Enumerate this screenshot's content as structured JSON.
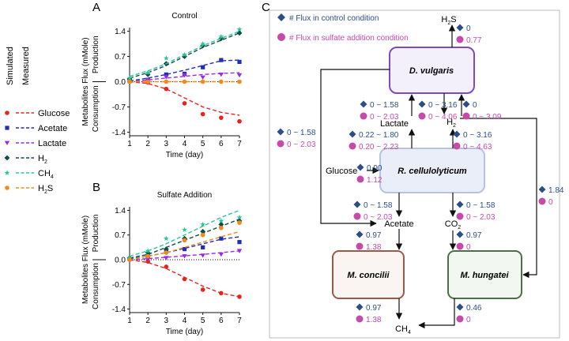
{
  "figure": {
    "panel_labels": {
      "a": "A",
      "b": "B",
      "c": "C"
    },
    "legend": {
      "simulated_label": "Simulated",
      "measured_label": "Measured",
      "entries": [
        {
          "name": "Glucose",
          "color": "#e8231d",
          "marker": "circle"
        },
        {
          "name": "Acetate",
          "color": "#1f2fb5",
          "marker": "square"
        },
        {
          "name": "Lactate",
          "color": "#9a2be2",
          "marker": "triangle-down"
        },
        {
          "name": "H",
          "sub": "2",
          "color": "#114c45",
          "marker": "diamond"
        },
        {
          "name": "CH",
          "sub": "4",
          "color": "#25c79b",
          "marker": "star"
        },
        {
          "name": "H",
          "sub": "2",
          "after": "S",
          "color": "#f08a1c",
          "marker": "circle"
        }
      ]
    }
  },
  "chart_data": [
    {
      "type": "line",
      "title": "Control",
      "xlabel": "Time (day)",
      "ylabel": "Metabolites Flux (mMole)",
      "region_labels": [
        "Production",
        "Consumption"
      ],
      "xlim": [
        1,
        7
      ],
      "ylim": [
        -1.5,
        1.5
      ],
      "xticks": [
        1,
        2,
        3,
        4,
        5,
        6,
        7
      ],
      "yticks": [
        -1.4,
        -0.7,
        0.0,
        0.7,
        1.4
      ],
      "ytick_labels": [
        "-1.4",
        "-0.7",
        "0.0",
        "0.7",
        "1.4"
      ],
      "series": [
        {
          "name": "Glucose",
          "color": "#e8231d",
          "marker": "circle",
          "simulated": [
            0,
            -0.05,
            -0.2,
            -0.45,
            -0.7,
            -0.85,
            -0.93
          ],
          "measured": [
            0,
            -0.02,
            -0.2,
            -0.6,
            -0.9,
            -1.0,
            -1.1
          ]
        },
        {
          "name": "Acetate",
          "color": "#1f2fb5",
          "marker": "square",
          "simulated": [
            0.02,
            0.1,
            0.2,
            0.32,
            0.45,
            0.58,
            0.6
          ],
          "measured": [
            0.02,
            0.05,
            0.2,
            0.22,
            0.4,
            0.6,
            0.55
          ]
        },
        {
          "name": "Lactate",
          "color": "#9a2be2",
          "marker": "triangle-down",
          "simulated": [
            0.0,
            0.05,
            0.1,
            0.15,
            0.2,
            0.23,
            0.25
          ],
          "measured": [
            0.01,
            0.05,
            0.13,
            0.18,
            0.12,
            0.2,
            0.18
          ]
        },
        {
          "name": "H2",
          "color": "#114c45",
          "marker": "diamond",
          "simulated": [
            0.1,
            0.25,
            0.45,
            0.7,
            0.95,
            1.15,
            1.35
          ],
          "measured": [
            0.08,
            0.2,
            0.5,
            0.7,
            1.0,
            1.2,
            1.35
          ]
        },
        {
          "name": "CH4",
          "color": "#25c79b",
          "marker": "star",
          "simulated": [
            0.15,
            0.3,
            0.5,
            0.75,
            1.0,
            1.2,
            1.4
          ],
          "measured": [
            0.1,
            0.25,
            0.65,
            0.75,
            1.05,
            1.25,
            1.45
          ]
        },
        {
          "name": "H2S",
          "color": "#f08a1c",
          "marker": "circle",
          "simulated": [
            0,
            0,
            0,
            0,
            0,
            0,
            0
          ],
          "measured": [
            0,
            0,
            0,
            0,
            0,
            0,
            0
          ]
        }
      ]
    },
    {
      "type": "line",
      "title": "Sulfate Addition",
      "xlabel": "Time (day)",
      "ylabel": "Metabolites Flux (mMole)",
      "region_labels": [
        "Production",
        "Consumption"
      ],
      "xlim": [
        1,
        7
      ],
      "ylim": [
        -1.5,
        1.5
      ],
      "xticks": [
        1,
        2,
        3,
        4,
        5,
        6,
        7
      ],
      "yticks": [
        -1.4,
        -0.7,
        0.0,
        0.7,
        1.4
      ],
      "ytick_labels": [
        "-1.4",
        "-0.7",
        "0.0",
        "0.7",
        "1.4"
      ],
      "series": [
        {
          "name": "Glucose",
          "color": "#e8231d",
          "marker": "circle",
          "simulated": [
            0,
            -0.08,
            -0.25,
            -0.5,
            -0.75,
            -0.95,
            -1.05
          ],
          "measured": [
            0,
            -0.05,
            -0.2,
            -0.55,
            -0.85,
            -0.95,
            -1.05
          ]
        },
        {
          "name": "Acetate",
          "color": "#1f2fb5",
          "marker": "square",
          "simulated": [
            0.02,
            0.1,
            0.2,
            0.32,
            0.45,
            0.58,
            0.65
          ],
          "measured": [
            0.02,
            0.1,
            0.25,
            0.3,
            0.35,
            0.6,
            0.5
          ]
        },
        {
          "name": "Lactate",
          "color": "#9a2be2",
          "marker": "triangle-down",
          "simulated": [
            0.0,
            0.03,
            0.07,
            0.11,
            0.15,
            0.2,
            0.25
          ],
          "measured": [
            0.0,
            0.02,
            0.05,
            0.1,
            0.12,
            0.15,
            0.25
          ]
        },
        {
          "name": "H2",
          "color": "#114c45",
          "marker": "diamond",
          "simulated": [
            0.05,
            0.15,
            0.35,
            0.55,
            0.75,
            0.95,
            1.15
          ],
          "measured": [
            0.05,
            0.2,
            0.3,
            0.6,
            0.8,
            1.0,
            1.1
          ]
        },
        {
          "name": "CH4",
          "color": "#25c79b",
          "marker": "star",
          "simulated": [
            0.1,
            0.25,
            0.45,
            0.7,
            0.95,
            1.2,
            1.4
          ],
          "measured": [
            0.05,
            0.25,
            0.6,
            0.85,
            1.0,
            1.1,
            1.2
          ]
        },
        {
          "name": "H2S",
          "color": "#f08a1c",
          "marker": "circle",
          "simulated": [
            0.0,
            0.1,
            0.2,
            0.35,
            0.5,
            0.65,
            0.8
          ],
          "measured": [
            0.0,
            0.1,
            0.2,
            0.55,
            0.7,
            0.9,
            1.05
          ]
        }
      ]
    },
    {
      "type": "diagram",
      "legend": {
        "control": "# Flux in control condition",
        "sulfate": "# Flux in sulfate addition condition",
        "control_color": "#2b4e86",
        "sulfate_color": "#c64aa9"
      },
      "organisms": {
        "d_vulgaris": "D. vulgaris",
        "r_cellulolyticum": "R. cellulolyticum",
        "m_concilii": "M. concilii",
        "m_hungatei": "M. hungatei"
      },
      "metabolites": {
        "h2s": {
          "main": "H",
          "sub": "2",
          "after": "S"
        },
        "lactate": "Lactate",
        "h2": {
          "main": "H",
          "sub": "2"
        },
        "glucose": "Glucose",
        "acetate": "Acetate",
        "co2": {
          "main": "CO",
          "sub": "2"
        },
        "ch4": {
          "main": "CH",
          "sub": "4"
        }
      },
      "fluxes": {
        "h2s_out": {
          "control": "0",
          "sulfate": "0.77"
        },
        "lactate_to_dv": {
          "control": "0 ~ 1.58",
          "sulfate": "0 ~ 2.03"
        },
        "dv_to_h2": {
          "control": "0 ~ 3.16",
          "sulfate": "0 ~ 4.06"
        },
        "h2_to_dv": {
          "control": "0",
          "sulfate": "0 ~ 3.09"
        },
        "dv_to_acetate": {
          "control": "0 ~ 1.58",
          "sulfate": "0 ~ 2.03"
        },
        "rc_to_lactate": {
          "control": "0.22 ~ 1.80",
          "sulfate": "0.20 ~ 2.23"
        },
        "rc_to_h2": {
          "control": "0 ~ 3.16",
          "sulfate": "0 ~ 4.63"
        },
        "glucose_in": {
          "control": "0.90",
          "sulfate": "1.12"
        },
        "h2_to_mh": {
          "control": "1.84",
          "sulfate": "0"
        },
        "rc_to_acetate": {
          "control": "0 ~ 1.58",
          "sulfate": "0 ~ 2.03"
        },
        "rc_to_co2": {
          "control": "0 ~ 1.58",
          "sulfate": "0 ~ 2.03"
        },
        "acetate_to_mc": {
          "control": "0.97",
          "sulfate": "1.38"
        },
        "co2_to_mh": {
          "control": "0.97",
          "sulfate": "0"
        },
        "mc_to_ch4": {
          "control": "0.97",
          "sulfate": "1.38"
        },
        "mh_to_ch4": {
          "control": "0.46",
          "sulfate": "0"
        }
      }
    }
  ]
}
